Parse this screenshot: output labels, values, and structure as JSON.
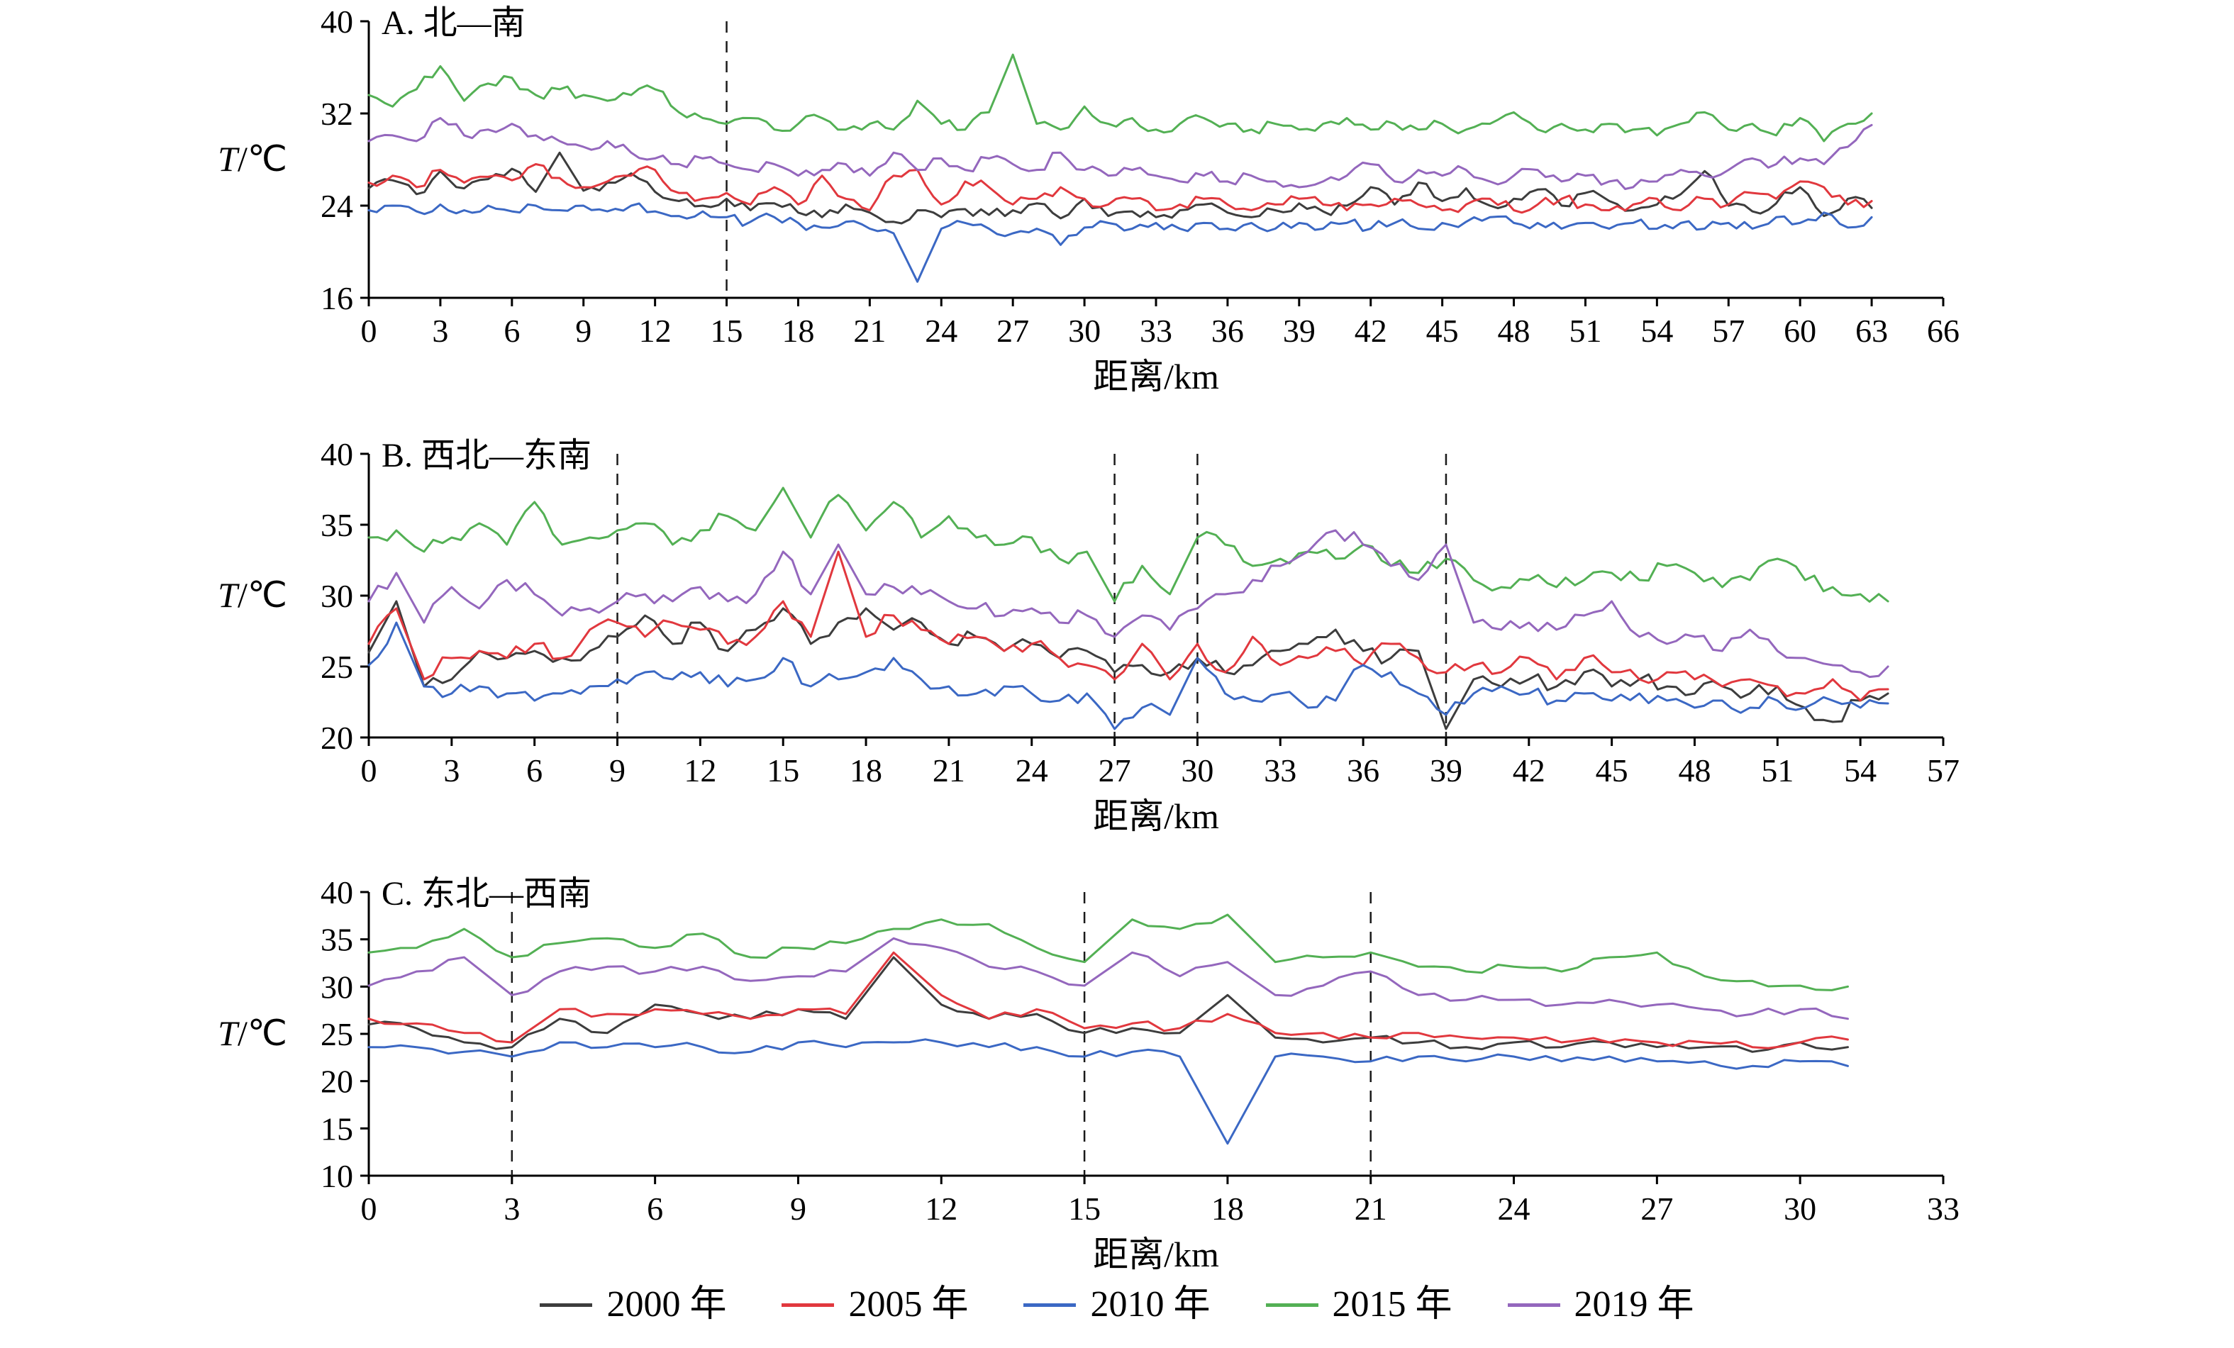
{
  "page": {
    "background": "#ffffff"
  },
  "legend": {
    "position": "bottom-center",
    "items": [
      {
        "label": "2000 年",
        "color": "#3d3d3d"
      },
      {
        "label": "2005 年",
        "color": "#e1383e"
      },
      {
        "label": "2010 年",
        "color": "#3b68c4"
      },
      {
        "label": "2015 年",
        "color": "#53b054"
      },
      {
        "label": "2019 年",
        "color": "#9467bd"
      }
    ]
  },
  "chart_data": [
    {
      "type": "line",
      "panel": "A",
      "title": "A. 北—南",
      "xlabel": "距离/km",
      "ylabel": "T/℃",
      "xlim": [
        0,
        66
      ],
      "xtick_step": 3,
      "ylim": [
        16,
        40
      ],
      "yticks": [
        16,
        24,
        32,
        40
      ],
      "dashed_x": [
        15
      ],
      "grid": false,
      "x_step": 1,
      "noise": 0.5,
      "series": [
        {
          "name": "2000 年",
          "color": "#3d3d3d",
          "values": [
            25.5,
            26.2,
            25.0,
            27.0,
            25.5,
            26.3,
            27.2,
            25.2,
            28.6,
            25.3,
            26.0,
            26.8,
            25.2,
            24.4,
            24.0,
            24.6,
            23.6,
            24.2,
            23.4,
            23.0,
            24.1,
            23.4,
            22.6,
            23.6,
            23.0,
            23.7,
            23.2,
            23.6,
            24.2,
            22.9,
            24.6,
            23.1,
            23.5,
            23.0,
            23.6,
            24.1,
            23.4,
            23.0,
            23.6,
            24.2,
            23.5,
            24.0,
            25.6,
            24.1,
            26.0,
            24.4,
            25.5,
            24.0,
            24.6,
            25.4,
            24.0,
            25.1,
            24.4,
            23.6,
            24.1,
            25.0,
            27.0,
            24.0,
            23.5,
            24.2,
            25.6,
            23.1,
            24.6,
            23.8
          ]
        },
        {
          "name": "2005 年",
          "color": "#e1383e",
          "values": [
            26.0,
            26.6,
            25.6,
            27.1,
            26.0,
            26.5,
            26.2,
            27.6,
            26.4,
            25.6,
            26.1,
            26.6,
            27.1,
            25.1,
            24.6,
            25.1,
            24.1,
            25.6,
            24.1,
            26.6,
            24.6,
            23.6,
            26.6,
            27.1,
            24.1,
            26.1,
            25.6,
            24.1,
            24.6,
            25.6,
            24.6,
            24.1,
            24.6,
            23.6,
            24.1,
            24.6,
            24.1,
            23.6,
            24.1,
            24.6,
            24.1,
            23.6,
            24.1,
            24.6,
            24.1,
            23.6,
            24.1,
            24.6,
            23.6,
            24.1,
            24.6,
            24.1,
            23.6,
            24.1,
            24.6,
            23.6,
            24.6,
            24.1,
            25.1,
            24.6,
            26.1,
            25.6,
            24.1,
            24.4
          ]
        },
        {
          "name": "2010 年",
          "color": "#3b68c4",
          "values": [
            23.6,
            24.0,
            23.5,
            24.1,
            23.6,
            24.0,
            23.5,
            24.0,
            23.6,
            24.0,
            23.5,
            24.0,
            23.5,
            23.1,
            23.5,
            23.0,
            22.6,
            23.0,
            22.5,
            22.1,
            22.6,
            22.0,
            21.6,
            17.4,
            22.0,
            22.5,
            22.0,
            21.6,
            22.0,
            20.6,
            22.1,
            22.5,
            22.0,
            22.5,
            22.0,
            22.5,
            22.0,
            22.5,
            22.0,
            22.5,
            22.0,
            22.5,
            22.0,
            22.5,
            22.0,
            22.5,
            22.6,
            23.0,
            22.5,
            22.5,
            22.0,
            22.5,
            22.0,
            22.5,
            22.0,
            22.5,
            22.0,
            22.5,
            22.0,
            23.0,
            22.5,
            23.4,
            22.1,
            23.0
          ]
        },
        {
          "name": "2015 年",
          "color": "#53b054",
          "values": [
            33.6,
            32.6,
            34.1,
            36.1,
            33.1,
            34.6,
            35.1,
            33.6,
            34.1,
            33.6,
            33.1,
            33.6,
            34.1,
            32.1,
            31.6,
            31.1,
            31.6,
            30.6,
            31.1,
            31.6,
            30.6,
            31.1,
            30.6,
            33.1,
            31.1,
            30.6,
            32.1,
            37.1,
            31.1,
            30.6,
            32.6,
            31.1,
            31.6,
            30.6,
            31.1,
            31.6,
            31.1,
            30.6,
            31.1,
            30.6,
            31.1,
            31.6,
            30.6,
            31.1,
            30.6,
            31.1,
            30.6,
            31.1,
            32.1,
            30.6,
            31.1,
            30.6,
            31.1,
            30.6,
            30.1,
            31.1,
            32.1,
            30.6,
            31.1,
            30.1,
            31.6,
            29.6,
            31.1,
            32.0
          ]
        },
        {
          "name": "2019 年",
          "color": "#9467bd",
          "values": [
            29.6,
            30.1,
            29.6,
            31.6,
            30.1,
            30.6,
            31.1,
            30.1,
            29.6,
            29.1,
            29.6,
            28.6,
            28.1,
            27.6,
            28.1,
            27.6,
            27.1,
            27.6,
            26.6,
            27.1,
            27.6,
            26.6,
            28.6,
            27.1,
            28.1,
            27.1,
            28.1,
            27.6,
            27.1,
            28.6,
            27.1,
            26.6,
            27.1,
            26.6,
            26.1,
            26.6,
            26.1,
            26.6,
            26.1,
            25.6,
            26.1,
            26.6,
            27.6,
            26.1,
            27.1,
            26.6,
            27.1,
            26.1,
            26.6,
            27.1,
            26.1,
            26.6,
            26.1,
            25.6,
            26.1,
            27.1,
            26.6,
            27.1,
            28.1,
            27.6,
            28.1,
            27.6,
            29.1,
            31.0
          ]
        }
      ]
    },
    {
      "type": "line",
      "panel": "B",
      "title": "B. 西北—东南",
      "xlabel": "距离/km",
      "ylabel": "T/℃",
      "xlim": [
        0,
        57
      ],
      "xtick_step": 3,
      "ylim": [
        20,
        40
      ],
      "yticks": [
        20,
        25,
        30,
        35,
        40
      ],
      "dashed_x": [
        9,
        27,
        30,
        39
      ],
      "grid": false,
      "x_step": 1,
      "noise": 0.55,
      "series": [
        {
          "name": "2000 年",
          "color": "#3d3d3d",
          "values": [
            26.0,
            29.6,
            23.6,
            24.1,
            26.1,
            25.6,
            26.1,
            25.6,
            26.1,
            27.1,
            28.6,
            26.6,
            28.1,
            26.1,
            27.6,
            29.1,
            26.6,
            28.1,
            29.1,
            27.6,
            28.1,
            26.6,
            27.1,
            26.1,
            26.6,
            25.6,
            26.1,
            24.6,
            25.1,
            24.6,
            25.6,
            24.6,
            25.1,
            26.1,
            26.6,
            27.6,
            26.1,
            25.6,
            26.1,
            20.6,
            24.1,
            23.6,
            24.1,
            23.6,
            24.6,
            23.6,
            24.1,
            23.6,
            23.1,
            23.6,
            23.1,
            23.6,
            22.1,
            21.1,
            22.6,
            23.1
          ]
        },
        {
          "name": "2005 年",
          "color": "#e1383e",
          "values": [
            26.6,
            29.1,
            24.1,
            25.6,
            26.1,
            25.6,
            26.6,
            25.6,
            27.6,
            28.1,
            27.1,
            28.1,
            27.6,
            26.6,
            27.1,
            29.6,
            27.1,
            33.1,
            27.1,
            28.6,
            27.6,
            26.6,
            27.1,
            26.1,
            26.6,
            25.6,
            25.1,
            24.1,
            26.6,
            24.1,
            26.6,
            24.6,
            27.1,
            25.1,
            25.6,
            26.1,
            25.1,
            26.6,
            25.6,
            24.6,
            25.1,
            24.6,
            25.6,
            24.1,
            25.6,
            24.6,
            24.1,
            24.6,
            24.1,
            23.6,
            24.1,
            23.6,
            23.1,
            24.1,
            22.6,
            23.4
          ]
        },
        {
          "name": "2010 年",
          "color": "#3b68c4",
          "values": [
            25.1,
            28.1,
            23.6,
            23.1,
            23.6,
            23.1,
            22.6,
            23.1,
            23.6,
            24.1,
            24.6,
            24.1,
            24.6,
            23.6,
            24.1,
            25.6,
            23.6,
            24.1,
            24.6,
            25.6,
            24.1,
            23.6,
            23.1,
            23.6,
            23.1,
            22.6,
            23.1,
            20.6,
            22.1,
            21.6,
            25.6,
            23.1,
            22.6,
            23.1,
            22.1,
            22.6,
            25.1,
            24.6,
            23.1,
            21.6,
            23.1,
            23.6,
            23.1,
            22.6,
            23.1,
            22.6,
            23.1,
            22.6,
            22.1,
            22.6,
            22.1,
            22.6,
            22.1,
            22.6,
            22.1,
            22.4
          ]
        },
        {
          "name": "2015 年",
          "color": "#53b054",
          "values": [
            34.1,
            34.6,
            33.1,
            34.1,
            35.1,
            33.6,
            36.6,
            33.6,
            34.1,
            34.6,
            35.1,
            33.6,
            34.6,
            35.6,
            34.6,
            37.6,
            34.1,
            37.1,
            34.6,
            36.6,
            34.1,
            35.6,
            34.1,
            33.6,
            34.1,
            32.6,
            33.1,
            29.6,
            32.1,
            30.1,
            34.1,
            33.6,
            32.1,
            32.6,
            33.1,
            32.6,
            33.6,
            32.1,
            31.6,
            32.6,
            31.1,
            30.6,
            31.1,
            30.6,
            31.1,
            31.6,
            31.1,
            32.1,
            31.6,
            30.6,
            31.1,
            32.6,
            31.1,
            30.6,
            30.1,
            29.6
          ]
        },
        {
          "name": "2019 年",
          "color": "#9467bd",
          "values": [
            29.6,
            31.6,
            28.1,
            30.6,
            29.1,
            31.1,
            30.1,
            28.6,
            29.1,
            29.6,
            30.1,
            29.6,
            30.6,
            29.6,
            30.1,
            33.1,
            30.1,
            33.6,
            30.1,
            30.6,
            30.1,
            29.6,
            29.1,
            28.6,
            29.1,
            28.1,
            28.6,
            27.1,
            28.6,
            27.6,
            29.1,
            30.1,
            31.1,
            32.1,
            33.1,
            34.6,
            33.6,
            32.1,
            31.1,
            33.6,
            28.1,
            27.6,
            28.1,
            27.6,
            28.6,
            29.6,
            27.1,
            26.6,
            27.1,
            26.1,
            27.6,
            26.1,
            25.6,
            25.1,
            24.6,
            25.0
          ]
        }
      ]
    },
    {
      "type": "line",
      "panel": "C",
      "title": "C. 东北—西南",
      "xlabel": "距离/km",
      "ylabel": "T/℃",
      "xlim": [
        0,
        33
      ],
      "xtick_step": 3,
      "ylim": [
        10,
        40
      ],
      "yticks": [
        10,
        15,
        20,
        25,
        30,
        35,
        40
      ],
      "dashed_x": [
        3,
        15,
        21
      ],
      "grid": false,
      "x_step": 1,
      "noise": 0.45,
      "series": [
        {
          "name": "2000 年",
          "color": "#3d3d3d",
          "values": [
            26.0,
            25.6,
            24.1,
            23.6,
            26.6,
            25.1,
            28.1,
            27.1,
            26.6,
            27.6,
            26.6,
            33.1,
            28.1,
            26.6,
            27.1,
            25.1,
            25.6,
            25.1,
            29.1,
            24.6,
            24.1,
            24.6,
            24.1,
            23.6,
            24.1,
            23.6,
            24.1,
            23.6,
            23.6,
            23.1,
            24.1,
            23.6
          ]
        },
        {
          "name": "2005 年",
          "color": "#e1383e",
          "values": [
            26.6,
            26.1,
            25.1,
            24.1,
            27.6,
            27.1,
            27.6,
            27.1,
            26.6,
            27.6,
            27.1,
            33.6,
            29.1,
            26.6,
            27.6,
            25.6,
            26.1,
            25.6,
            27.1,
            25.1,
            25.1,
            24.6,
            25.1,
            24.6,
            24.6,
            24.1,
            24.1,
            24.1,
            24.1,
            23.6,
            24.1,
            24.4
          ]
        },
        {
          "name": "2010 年",
          "color": "#3b68c4",
          "values": [
            23.6,
            23.6,
            23.1,
            22.6,
            24.1,
            23.6,
            23.6,
            23.6,
            23.1,
            24.1,
            23.6,
            24.1,
            24.1,
            23.6,
            23.6,
            22.6,
            23.1,
            22.6,
            13.4,
            22.6,
            22.6,
            22.1,
            22.6,
            22.1,
            22.6,
            22.1,
            22.6,
            22.1,
            22.1,
            21.6,
            22.1,
            21.6
          ]
        },
        {
          "name": "2015 年",
          "color": "#53b054",
          "values": [
            33.6,
            34.1,
            36.1,
            33.1,
            34.6,
            35.1,
            34.1,
            35.6,
            33.1,
            34.1,
            34.6,
            36.1,
            37.1,
            36.6,
            34.1,
            32.6,
            37.1,
            36.1,
            37.6,
            32.6,
            33.1,
            33.6,
            32.1,
            31.6,
            32.1,
            31.6,
            33.1,
            33.6,
            31.1,
            30.6,
            30.1,
            30.0
          ]
        },
        {
          "name": "2019 年",
          "color": "#9467bd",
          "values": [
            30.1,
            31.6,
            33.1,
            29.1,
            31.6,
            32.1,
            31.6,
            32.1,
            30.6,
            31.1,
            31.6,
            35.1,
            34.1,
            32.1,
            31.6,
            30.1,
            33.6,
            31.1,
            32.6,
            29.1,
            30.1,
            31.6,
            29.1,
            28.6,
            28.6,
            28.1,
            28.6,
            28.1,
            27.6,
            27.1,
            27.6,
            26.6
          ]
        }
      ]
    }
  ]
}
